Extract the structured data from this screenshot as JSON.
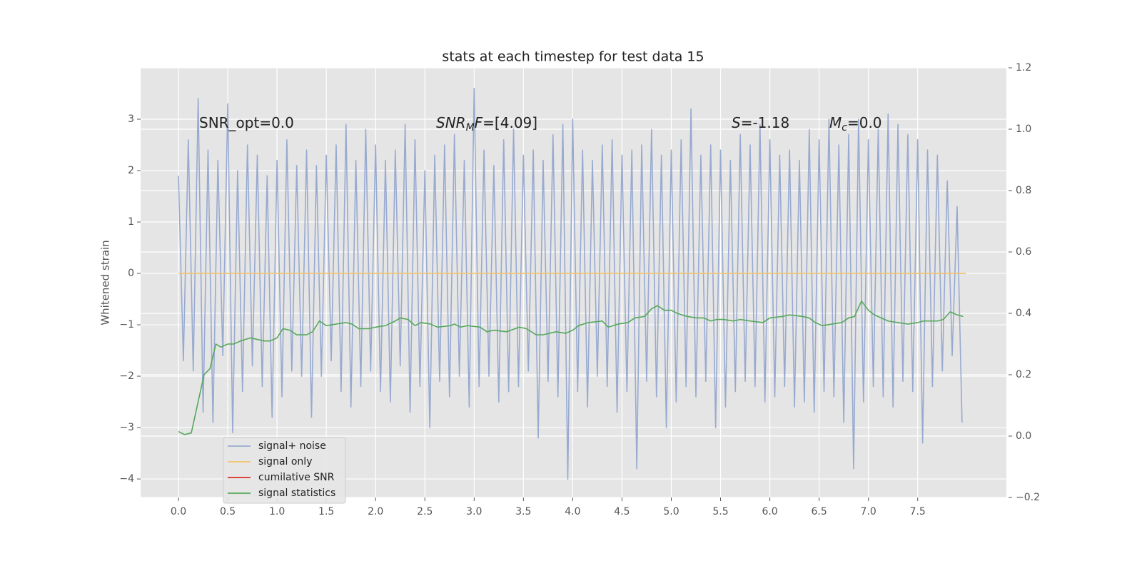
{
  "chart_data": {
    "type": "line",
    "title": "stats at each timestep for test data 15",
    "ylabel": "Whitened strain",
    "annotations": [
      [
        {
          "text": "SNR_opt=0.0",
          "style": "normal"
        }
      ],
      [
        {
          "text": "SNR",
          "style": "italic"
        },
        {
          "text": "M",
          "style": "sub"
        },
        {
          "text": "F",
          "style": "italic"
        },
        {
          "text": "=[4.09]",
          "style": "normal"
        }
      ],
      [
        {
          "text": "S",
          "style": "italic"
        },
        {
          "text": "=-1.18",
          "style": "normal"
        }
      ],
      [
        {
          "text": "M",
          "style": "italic"
        },
        {
          "text": "c",
          "style": "sub"
        },
        {
          "text": "=0.0",
          "style": "normal"
        }
      ]
    ],
    "xlim": [
      -0.384,
      8.4
    ],
    "xticks": [
      {
        "value": 0,
        "label": "0.0"
      },
      0.5,
      {
        "value": 1,
        "label": "1.0"
      },
      1.5,
      {
        "value": 2,
        "label": "2.0"
      },
      2.5,
      {
        "value": 3,
        "label": "3.0"
      },
      3.5,
      {
        "value": 4,
        "label": "4.0"
      },
      4.5,
      {
        "value": 5,
        "label": "5.0"
      },
      5.5,
      {
        "value": 6,
        "label": "6.0"
      },
      6.5,
      {
        "value": 7,
        "label": "7.0"
      },
      7.5
    ],
    "ylim": [
      -4.36,
      4.0
    ],
    "yticks": [
      {
        "value": -4,
        "label": "−4"
      },
      {
        "value": -3,
        "label": "−3"
      },
      {
        "value": -2,
        "label": "−2"
      },
      {
        "value": -1,
        "label": "−1"
      },
      0,
      1,
      2,
      3
    ],
    "y2lim": [
      -0.2,
      1.2
    ],
    "y2ticks": [
      {
        "value": -0.2,
        "label": "−0.2"
      },
      {
        "value": 0,
        "label": "0.0"
      },
      0.2,
      0.4,
      0.6,
      0.8,
      {
        "value": 1,
        "label": "1.0"
      },
      1.2
    ],
    "grid": true,
    "legend": "lower left",
    "series": [
      {
        "name": "signal+ noise",
        "color": "#98aad0",
        "x": [
          0,
          0.05,
          0.1,
          0.15,
          0.2,
          0.25,
          0.3,
          0.35,
          0.4,
          0.45,
          0.5,
          0.55,
          0.6,
          0.65,
          0.7,
          0.75,
          0.8,
          0.85,
          0.9,
          0.95,
          1,
          1.05,
          1.1,
          1.15,
          1.2,
          1.25,
          1.3,
          1.35,
          1.4,
          1.45,
          1.5,
          1.55,
          1.6,
          1.65,
          1.7,
          1.75,
          1.8,
          1.85,
          1.9,
          1.95,
          2,
          2.05,
          2.1,
          2.15,
          2.2,
          2.25,
          2.3,
          2.35,
          2.4,
          2.45,
          2.5,
          2.55,
          2.6,
          2.65,
          2.7,
          2.75,
          2.8,
          2.85,
          2.9,
          2.95,
          3,
          3.05,
          3.1,
          3.15,
          3.2,
          3.25,
          3.3,
          3.35,
          3.4,
          3.45,
          3.5,
          3.55,
          3.6,
          3.65,
          3.7,
          3.75,
          3.8,
          3.85,
          3.9,
          3.95,
          4,
          4.05,
          4.1,
          4.15,
          4.2,
          4.25,
          4.3,
          4.35,
          4.4,
          4.45,
          4.5,
          4.55,
          4.6,
          4.65,
          4.7,
          4.75,
          4.8,
          4.85,
          4.9,
          4.95,
          5,
          5.05,
          5.1,
          5.15,
          5.2,
          5.25,
          5.3,
          5.35,
          5.4,
          5.45,
          5.5,
          5.55,
          5.6,
          5.65,
          5.7,
          5.75,
          5.8,
          5.85,
          5.9,
          5.95,
          6,
          6.05,
          6.1,
          6.15,
          6.2,
          6.25,
          6.3,
          6.35,
          6.4,
          6.45,
          6.5,
          6.55,
          6.6,
          6.65,
          6.7,
          6.75,
          6.8,
          6.85,
          6.9,
          6.95,
          7,
          7.05,
          7.1,
          7.15,
          7.2,
          7.25,
          7.3,
          7.35,
          7.4,
          7.45,
          7.5,
          7.55,
          7.6,
          7.65,
          7.7,
          7.75,
          7.8,
          7.85,
          7.9,
          7.95
        ],
        "values": [
          1.9,
          -1.7,
          2.6,
          -1.9,
          3.4,
          -2.7,
          2.4,
          -2.9,
          2.2,
          -1.6,
          3.3,
          -3.1,
          2.0,
          -2.3,
          2.5,
          -1.8,
          2.3,
          -2.2,
          1.9,
          -2.8,
          2.2,
          -2.4,
          2.6,
          -1.9,
          2.1,
          -2.0,
          2.4,
          -2.8,
          2.1,
          -2.0,
          2.3,
          -1.7,
          2.5,
          -2.3,
          2.9,
          -2.6,
          2.2,
          -2.2,
          2.8,
          -1.9,
          2.5,
          -2.3,
          2.2,
          -2.5,
          2.4,
          -1.8,
          2.9,
          -2.7,
          2.6,
          -2.2,
          2.0,
          -3.0,
          2.3,
          -2.1,
          2.5,
          -2.4,
          2.7,
          -2.0,
          2.2,
          -2.6,
          3.6,
          -2.2,
          2.4,
          -2.0,
          2.1,
          -2.5,
          2.6,
          -2.3,
          2.8,
          -2.2,
          2.3,
          -1.9,
          2.4,
          -3.2,
          2.2,
          -2.1,
          2.7,
          -2.4,
          2.9,
          -4.0,
          3.0,
          -2.3,
          2.4,
          -2.6,
          2.2,
          -2.0,
          2.5,
          -2.2,
          2.6,
          -2.7,
          2.3,
          -2.3,
          2.4,
          -3.8,
          2.5,
          -2.1,
          2.8,
          -2.4,
          2.3,
          -3.0,
          2.4,
          -2.5,
          2.6,
          -2.2,
          3.2,
          -2.4,
          2.3,
          -2.1,
          2.5,
          -3.0,
          2.4,
          -2.6,
          2.2,
          -2.3,
          2.7,
          -2.1,
          2.5,
          -2.2,
          2.9,
          -2.5,
          2.6,
          -2.4,
          2.3,
          -2.2,
          2.4,
          -2.6,
          2.2,
          -2.5,
          2.8,
          -2.7,
          2.6,
          -2.3,
          3.0,
          -2.4,
          2.5,
          -2.9,
          2.7,
          -3.8,
          3.0,
          -2.5,
          2.6,
          -2.2,
          2.8,
          -2.4,
          3.1,
          -2.6,
          2.9,
          -2.1,
          2.7,
          -2.3,
          2.6,
          -3.3,
          2.4,
          -2.2,
          2.3,
          -1.9,
          1.8,
          -1.6,
          1.3,
          -2.9
        ]
      },
      {
        "name": "signal only",
        "color": "#f2c46d",
        "x": [
          0,
          7.99
        ],
        "values": [
          0,
          0
        ]
      },
      {
        "name": "cumilative SNR",
        "color": "#d9302b",
        "x": [],
        "values": []
      },
      {
        "name": "signal statistics",
        "color": "#55a85a",
        "axis": "y2",
        "x": [
          0,
          0.06,
          0.13,
          0.26,
          0.32,
          0.38,
          0.43,
          0.5,
          0.56,
          0.63,
          0.73,
          0.8,
          0.87,
          0.93,
          1,
          1.06,
          1.13,
          1.2,
          1.3,
          1.36,
          1.43,
          1.5,
          1.6,
          1.7,
          1.76,
          1.83,
          1.93,
          2,
          2.1,
          2.2,
          2.25,
          2.33,
          2.4,
          2.46,
          2.56,
          2.63,
          2.76,
          2.8,
          2.86,
          2.93,
          3.06,
          3.13,
          3.2,
          3.33,
          3.46,
          3.53,
          3.63,
          3.7,
          3.83,
          3.93,
          4,
          4.06,
          4.16,
          4.3,
          4.36,
          4.46,
          4.56,
          4.63,
          4.73,
          4.8,
          4.86,
          4.93,
          5,
          5.06,
          5.16,
          5.26,
          5.33,
          5.4,
          5.46,
          5.53,
          5.63,
          5.7,
          5.8,
          5.93,
          6,
          6.13,
          6.2,
          6.33,
          6.4,
          6.46,
          6.53,
          6.63,
          6.73,
          6.8,
          6.86,
          6.93,
          7,
          7.06,
          7.2,
          7.3,
          7.4,
          7.5,
          7.56,
          7.7,
          7.76,
          7.83,
          7.9,
          7.96
        ],
        "values": [
          0.015,
          0.005,
          0.01,
          0.2,
          0.22,
          0.3,
          0.29,
          0.3,
          0.3,
          0.31,
          0.32,
          0.315,
          0.31,
          0.31,
          0.32,
          0.35,
          0.345,
          0.33,
          0.33,
          0.34,
          0.375,
          0.36,
          0.365,
          0.37,
          0.365,
          0.35,
          0.35,
          0.355,
          0.36,
          0.375,
          0.385,
          0.38,
          0.36,
          0.37,
          0.365,
          0.355,
          0.36,
          0.365,
          0.355,
          0.36,
          0.355,
          0.34,
          0.345,
          0.34,
          0.355,
          0.35,
          0.33,
          0.33,
          0.34,
          0.335,
          0.345,
          0.36,
          0.37,
          0.375,
          0.355,
          0.365,
          0.37,
          0.385,
          0.39,
          0.415,
          0.425,
          0.41,
          0.41,
          0.4,
          0.39,
          0.385,
          0.385,
          0.375,
          0.38,
          0.38,
          0.375,
          0.38,
          0.375,
          0.37,
          0.385,
          0.39,
          0.395,
          0.39,
          0.385,
          0.37,
          0.36,
          0.365,
          0.37,
          0.385,
          0.39,
          0.44,
          0.41,
          0.395,
          0.375,
          0.37,
          0.365,
          0.37,
          0.375,
          0.375,
          0.38,
          0.405,
          0.395,
          0.39
        ]
      }
    ]
  }
}
